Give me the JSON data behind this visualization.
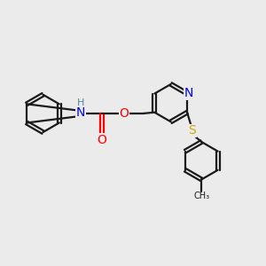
{
  "background_color": "#ebebeb",
  "bond_color": "#1a1a1a",
  "atom_colors": {
    "N": "#0000ff",
    "O": "#ff0000",
    "S": "#ccaa00",
    "H": "#4a8a9a",
    "C": "#1a1a1a"
  },
  "font_size": 9,
  "fig_size": [
    3.0,
    3.0
  ],
  "dpi": 100,
  "lw": 1.6
}
